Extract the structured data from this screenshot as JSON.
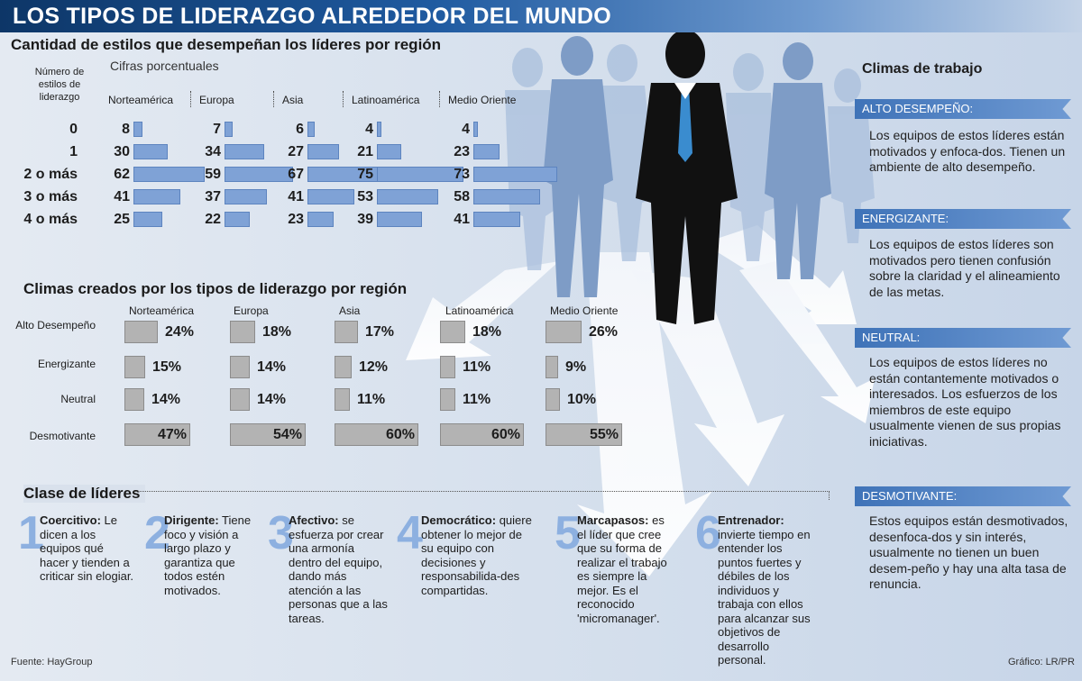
{
  "header": {
    "title": "LOS TIPOS DE LIDERAZGO ALREDEDOR DEL MUNDO"
  },
  "colors": {
    "header": "#1f5aa0",
    "blue_bar": "#7fa2d6",
    "gray_bar": "#b3b3b3",
    "ribbon": "#3f73b8",
    "number": "#8db0e0"
  },
  "chart_data": [
    {
      "type": "bar",
      "title": "Cantidad de estilos que desempeñan los líderes por región",
      "subtitle": "Cifras porcentuales",
      "row_header": "Número de estilos de liderazgo",
      "categories": [
        "0",
        "1",
        "2 o más",
        "3 o más",
        "4 o más"
      ],
      "series": [
        {
          "name": "Norteamérica",
          "values": [
            8,
            30,
            62,
            41,
            25
          ]
        },
        {
          "name": "Europa",
          "values": [
            7,
            34,
            59,
            37,
            22
          ]
        },
        {
          "name": "Asia",
          "values": [
            6,
            27,
            67,
            41,
            23
          ]
        },
        {
          "name": "Latinoamérica",
          "values": [
            4,
            21,
            75,
            53,
            39
          ]
        },
        {
          "name": "Medio Oriente",
          "values": [
            4,
            23,
            73,
            58,
            41
          ]
        }
      ]
    },
    {
      "type": "bar",
      "title": "Climas creados por los tipos de liderazgo por región",
      "categories": [
        "Alto Desempeño",
        "Energizante",
        "Neutral",
        "Desmotivante"
      ],
      "series": [
        {
          "name": "Norteamérica",
          "values": [
            24,
            15,
            14,
            47
          ]
        },
        {
          "name": "Europa",
          "values": [
            18,
            14,
            14,
            54
          ]
        },
        {
          "name": "Asia",
          "values": [
            17,
            12,
            11,
            60
          ]
        },
        {
          "name": "Latinoamérica",
          "values": [
            18,
            11,
            11,
            60
          ]
        },
        {
          "name": "Medio Oriente",
          "values": [
            26,
            9,
            10,
            55
          ]
        }
      ]
    }
  ],
  "climas": {
    "title": "Climas de trabajo",
    "items": [
      {
        "label": "ALTO DESEMPEÑO:",
        "text": "Los equipos de estos líderes están motivados y enfoca-dos. Tienen un ambiente de alto desempeño."
      },
      {
        "label": "ENERGIZANTE:",
        "text": "Los equipos de estos líderes son motivados pero tienen confusión sobre la claridad y el alineamiento de las metas."
      },
      {
        "label": "NEUTRAL:",
        "text": "Los equipos de estos líderes no están contantemente motivados o interesados. Los esfuerzos de los miembros de este equipo usualmente vienen de sus propias iniciativas."
      },
      {
        "label": "DESMOTIVANTE:",
        "text": "Estos equipos están desmotivados, desenfoca-dos y sin interés, usualmente no tienen un buen desem-peño y hay una alta tasa de renuncia."
      }
    ]
  },
  "clases": {
    "title": "Clase de líderes",
    "items": [
      {
        "num": "1",
        "name": "Coercitivo:",
        "text": "Le dicen a los equipos qué hacer y tienden a criticar sin elogiar."
      },
      {
        "num": "2",
        "name": "Dirigente:",
        "text": "Tiene foco y visión a largo plazo y garantiza que todos estén motivados."
      },
      {
        "num": "3",
        "name": "Afectivo:",
        "text": "se esfuerza por crear una armonía dentro del equipo, dando más atención a las personas que a las tareas."
      },
      {
        "num": "4",
        "name": "Democrático:",
        "text": "quiere obtener lo mejor de su equipo con decisiones y responsabilida-des compartidas."
      },
      {
        "num": "5",
        "name": "Marcapasos:",
        "text": "es el líder que cree que su forma de realizar el trabajo es siempre la mejor. Es el reconocido 'micromanager'."
      },
      {
        "num": "6",
        "name": "Entrenador:",
        "text": "invierte tiempo en entender los puntos fuertes y débiles de los individuos y trabaja con ellos para alcanzar sus objetivos de desarrollo personal."
      }
    ]
  },
  "footer": {
    "source": "Fuente: HayGroup",
    "credit": "Gráfico: LR/PR"
  }
}
